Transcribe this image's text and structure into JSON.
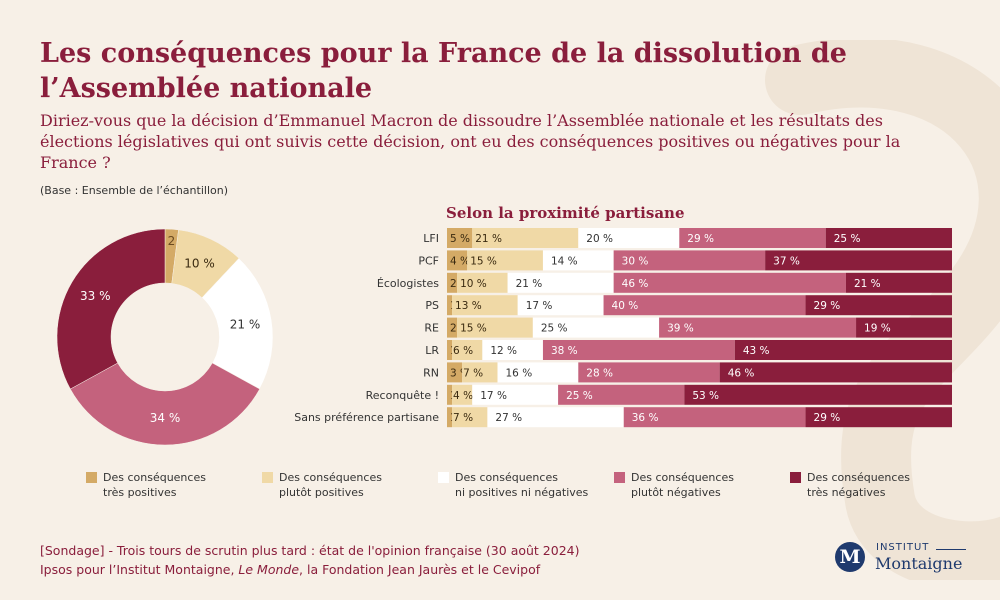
{
  "title": "Les conséquences pour la France de la dissolution de l’Assemblée nationale",
  "question": "Diriez-vous que la décision d’Emmanuel Macron de dissoudre l’Assemblée nationale et les résultats des élections législatives qui ont suivis cette décision, ont eu des conséquences positives ou négatives pour la France ?",
  "base": "(Base : Ensemble de l’échantillon)",
  "colors": {
    "background": "#f7f0e7",
    "very_positive": "#d4aa66",
    "positive": "#f0d9a6",
    "neutral": "#ffffff",
    "negative": "#c4627d",
    "very_negative": "#8a1e3c",
    "brand": "#8a1e3c",
    "logo": "#1f3a6e"
  },
  "chart_data": [
    {
      "type": "pie",
      "title": "",
      "categories": [
        "Des conséquences très positives",
        "Des conséquences plutôt positives",
        "Des conséquences ni positives ni négatives",
        "Des conséquences plutôt négatives",
        "Des conséquences très négatives"
      ],
      "values": [
        2,
        10,
        21,
        34,
        33
      ],
      "labels": [
        "2 %",
        "10 %",
        "21 %",
        "34 %",
        "33 %"
      ]
    },
    {
      "type": "bar",
      "orientation": "horizontal",
      "stacked": true,
      "title": "Selon la proximité partisane",
      "categories": [
        "LFI",
        "PCF",
        "Écologistes",
        "PS",
        "RE",
        "LR",
        "RN",
        "Reconquête !",
        "Sans préférence partisane"
      ],
      "series": [
        {
          "name": "Des conséquences très positives",
          "values": [
            5,
            4,
            2,
            1,
            2,
            1,
            3,
            1,
            1
          ]
        },
        {
          "name": "Des conséquences plutôt positives",
          "values": [
            21,
            15,
            10,
            13,
            15,
            6,
            7,
            4,
            7
          ]
        },
        {
          "name": "Des conséquences ni positives ni négatives",
          "values": [
            20,
            14,
            21,
            17,
            25,
            12,
            16,
            17,
            27
          ]
        },
        {
          "name": "Des conséquences plutôt négatives",
          "values": [
            29,
            30,
            46,
            40,
            39,
            38,
            28,
            25,
            36
          ]
        },
        {
          "name": "Des conséquences très négatives",
          "values": [
            25,
            37,
            21,
            29,
            19,
            43,
            46,
            53,
            29
          ]
        }
      ],
      "xlim": [
        0,
        100
      ]
    }
  ],
  "legend": [
    {
      "line1": "Des conséquences",
      "line2": "très positives"
    },
    {
      "line1": "Des conséquences",
      "line2": "plutôt positives"
    },
    {
      "line1": "Des conséquences",
      "line2": "ni positives ni négatives"
    },
    {
      "line1": "Des conséquences",
      "line2": "plutôt négatives"
    },
    {
      "line1": "Des conséquences",
      "line2": "très négatives"
    }
  ],
  "footer": {
    "line1": "[Sondage] - Trois tours de scrutin plus tard : état de l'opinion française (30 août 2024)",
    "line2_before": "Ipsos pour l’Institut Montaigne, ",
    "line2_italic": "Le Monde",
    "line2_after": ", la Fondation Jean Jaurès et le Cevipof"
  },
  "logo": {
    "mark": "M",
    "line1": "INSTITUT",
    "line2": "Montaigne"
  }
}
